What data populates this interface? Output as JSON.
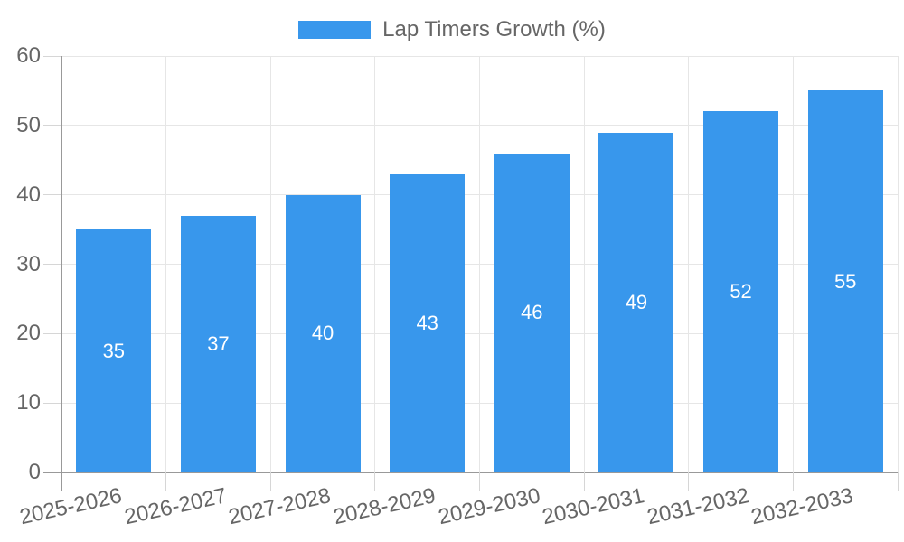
{
  "chart_data": {
    "type": "bar",
    "title": "Lap Timers Growth (%)",
    "legend_label": "Lap Timers Growth (%)",
    "legend_position": "top",
    "categories": [
      "2025-2026",
      "2026-2027",
      "2027-2028",
      "2028-2029",
      "2029-2030",
      "2030-2031",
      "2031-2032",
      "2032-2033"
    ],
    "series": [
      {
        "name": "Lap Timers Growth (%)",
        "values": [
          35,
          37,
          40,
          43,
          46,
          49,
          52,
          55
        ]
      }
    ],
    "bar_value_labels": [
      "35",
      "37",
      "40",
      "43",
      "46",
      "49",
      "52",
      "55"
    ],
    "xlabel": "",
    "ylabel": "",
    "ylim": [
      0,
      60
    ],
    "yticks": [
      0,
      10,
      20,
      30,
      40,
      50,
      60
    ],
    "grid": true,
    "colors": {
      "bar": "#3897EC",
      "bar_label_text": "#FFFFFF",
      "axis_text": "#666666",
      "gridline": "#E6E6E6",
      "tick_mark": "#D6D6D6",
      "axis_line": "#999999",
      "background": "#FFFFFF"
    }
  }
}
